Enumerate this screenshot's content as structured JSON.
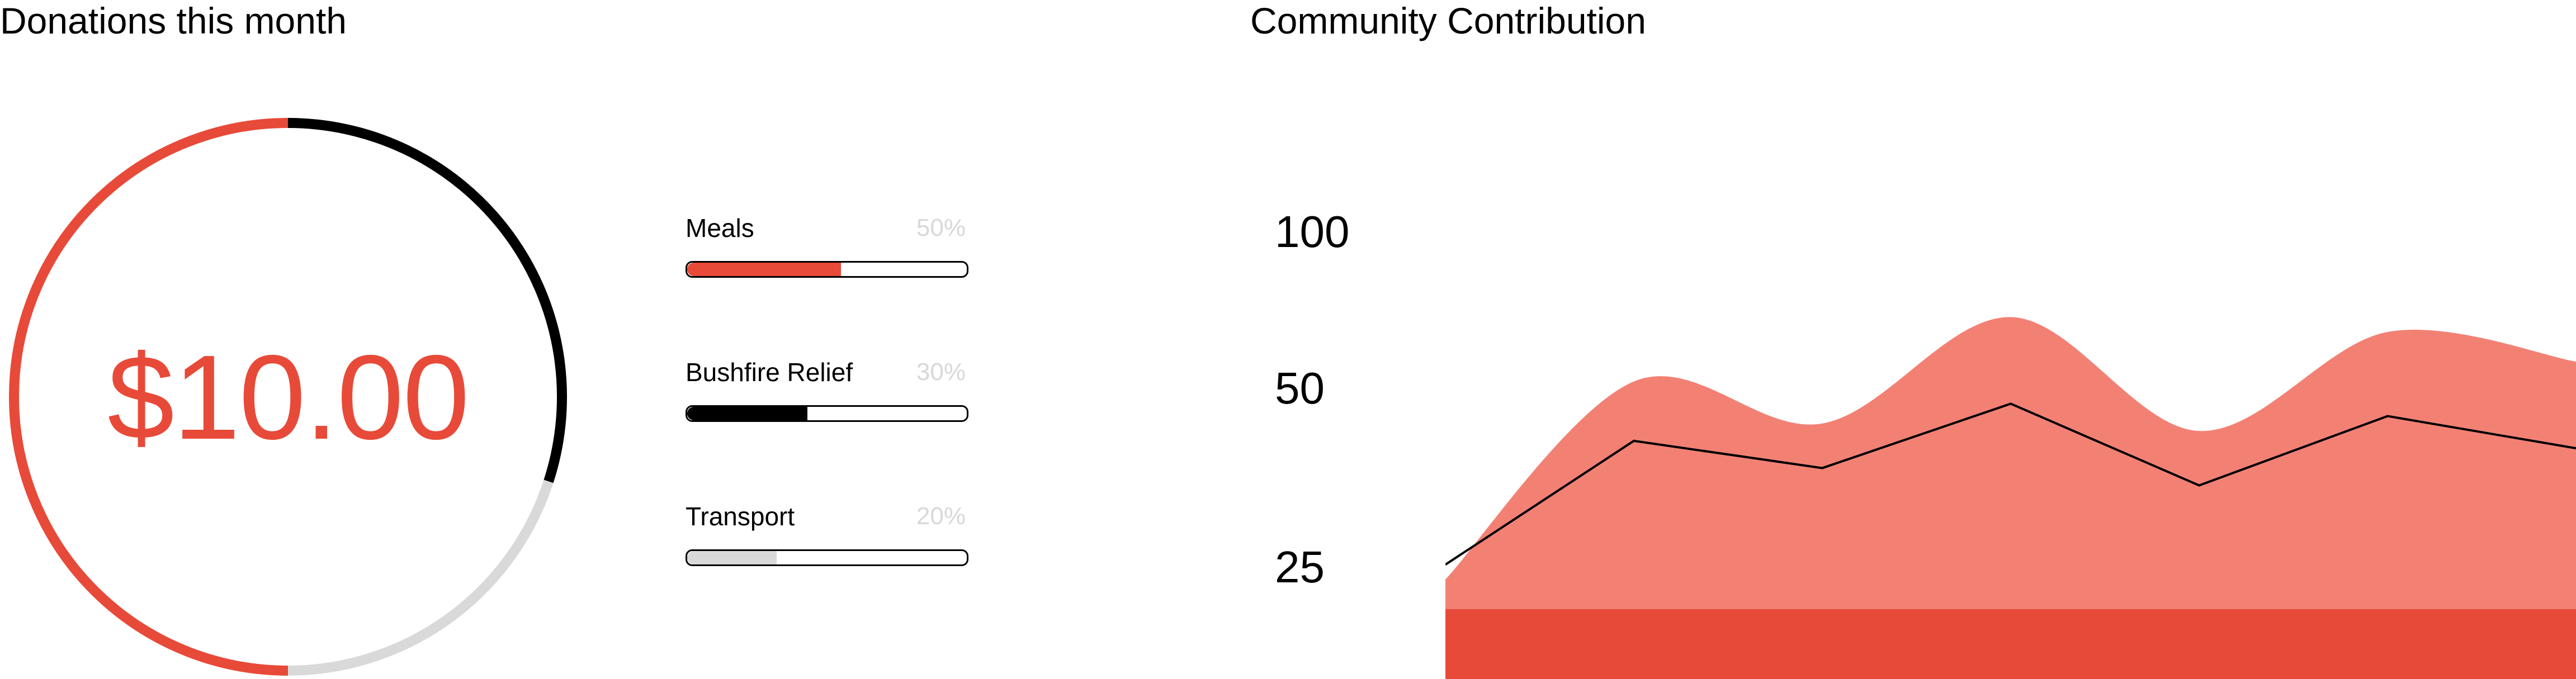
{
  "donations": {
    "title": "Donations this month",
    "amount": "$10.00",
    "segments": [
      {
        "label": "Meals",
        "percent": 50,
        "color": "#e84a39"
      },
      {
        "label": "Bushfire Relief",
        "percent": 30,
        "color": "#000000"
      },
      {
        "label": "Transport",
        "percent": 20,
        "color": "#d9d9d9"
      }
    ],
    "breakdown": [
      {
        "label": "Meals",
        "percent_text": "50%",
        "fill_fraction": 0.55,
        "color": "#e84a39"
      },
      {
        "label": "Bushfire Relief",
        "percent_text": "30%",
        "fill_fraction": 0.43,
        "color": "#000000"
      },
      {
        "label": "Transport",
        "percent_text": "20%",
        "fill_fraction": 0.32,
        "color": "#d9d9d9"
      }
    ]
  },
  "community": {
    "title": "Community Contribution",
    "chart_data": {
      "type": "area",
      "title": "Community Contribution",
      "y_tick_labels": [
        "100",
        "50",
        "25"
      ],
      "x": [
        0,
        1,
        2,
        3,
        4,
        5,
        6
      ],
      "series": [
        {
          "values": [
            12,
            92,
            75,
            118,
            72,
            112,
            100
          ],
          "color": "#f28174",
          "kind": "area"
        },
        {
          "values": [
            18,
            68,
            57,
            83,
            50,
            78,
            65
          ],
          "color": "#000000",
          "kind": "line"
        }
      ],
      "base_band_color": "#e84a39",
      "ylim": [
        0,
        140
      ]
    }
  }
}
